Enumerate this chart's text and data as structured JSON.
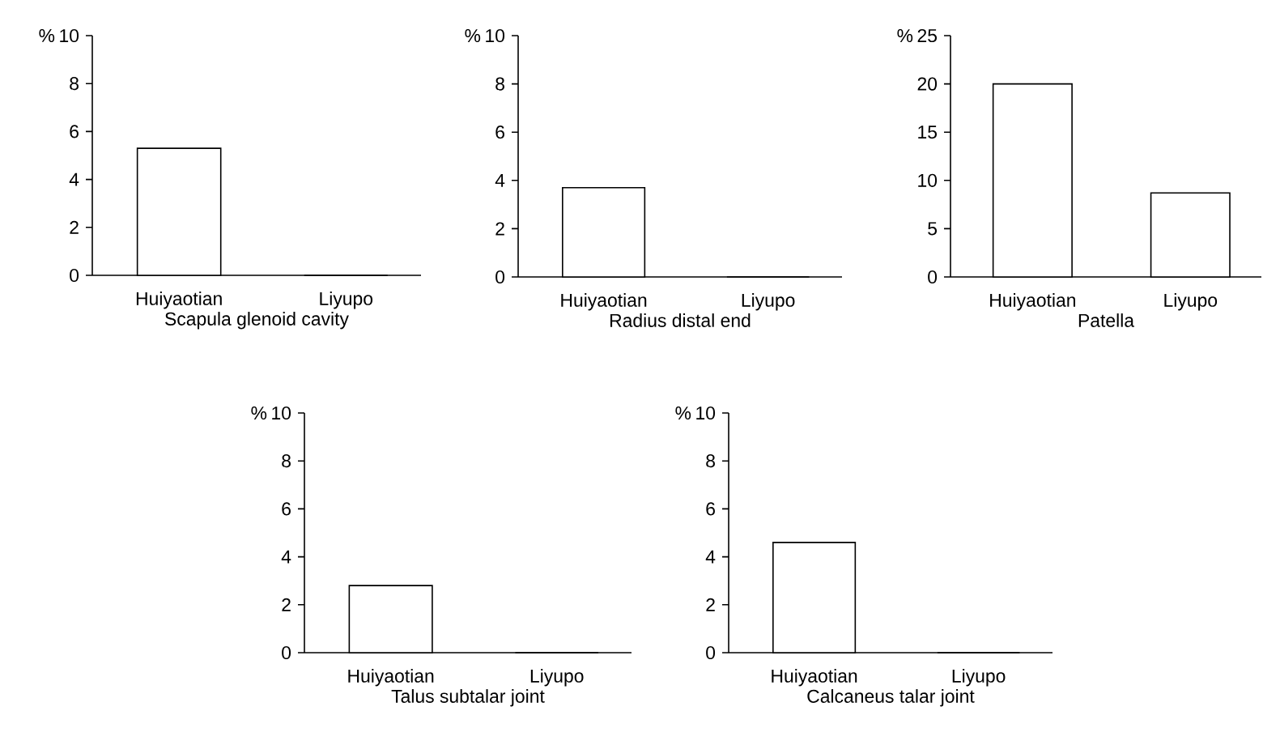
{
  "chart_data": [
    {
      "type": "bar",
      "xlabel": "Scapula glenoid cavity",
      "ylabel": "%",
      "categories": [
        "Huiyaotian",
        "Liyupo"
      ],
      "values": [
        5.3,
        0
      ],
      "color": "#ffffff",
      "ylim": [
        0,
        10
      ],
      "yticks": [
        0,
        2,
        4,
        6,
        8,
        10
      ]
    },
    {
      "type": "bar",
      "xlabel": "Radius distal end",
      "ylabel": "%",
      "categories": [
        "Huiyaotian",
        "Liyupo"
      ],
      "values": [
        3.7,
        0
      ],
      "color": "#ffffff",
      "ylim": [
        0,
        10
      ],
      "yticks": [
        0,
        2,
        4,
        6,
        8,
        10
      ]
    },
    {
      "type": "bar",
      "xlabel": "Patella",
      "ylabel": "%",
      "categories": [
        "Huiyaotian",
        "Liyupo"
      ],
      "values": [
        20,
        8.7
      ],
      "color": "#ffffff",
      "ylim": [
        0,
        25
      ],
      "yticks": [
        0,
        5,
        10,
        15,
        20,
        25
      ]
    },
    {
      "type": "bar",
      "xlabel": "Talus subtalar joint",
      "ylabel": "%",
      "categories": [
        "Huiyaotian",
        "Liyupo"
      ],
      "values": [
        2.8,
        0
      ],
      "color": "#ffffff",
      "ylim": [
        0,
        10
      ],
      "yticks": [
        0,
        2,
        4,
        6,
        8,
        10
      ]
    },
    {
      "type": "bar",
      "xlabel": "Calcaneus talar joint",
      "ylabel": "%",
      "categories": [
        "Huiyaotian",
        "Liyupo"
      ],
      "values": [
        4.6,
        0
      ],
      "color": "#ffffff",
      "ylim": [
        0,
        10
      ],
      "yticks": [
        0,
        2,
        4,
        6,
        8,
        10
      ]
    }
  ]
}
